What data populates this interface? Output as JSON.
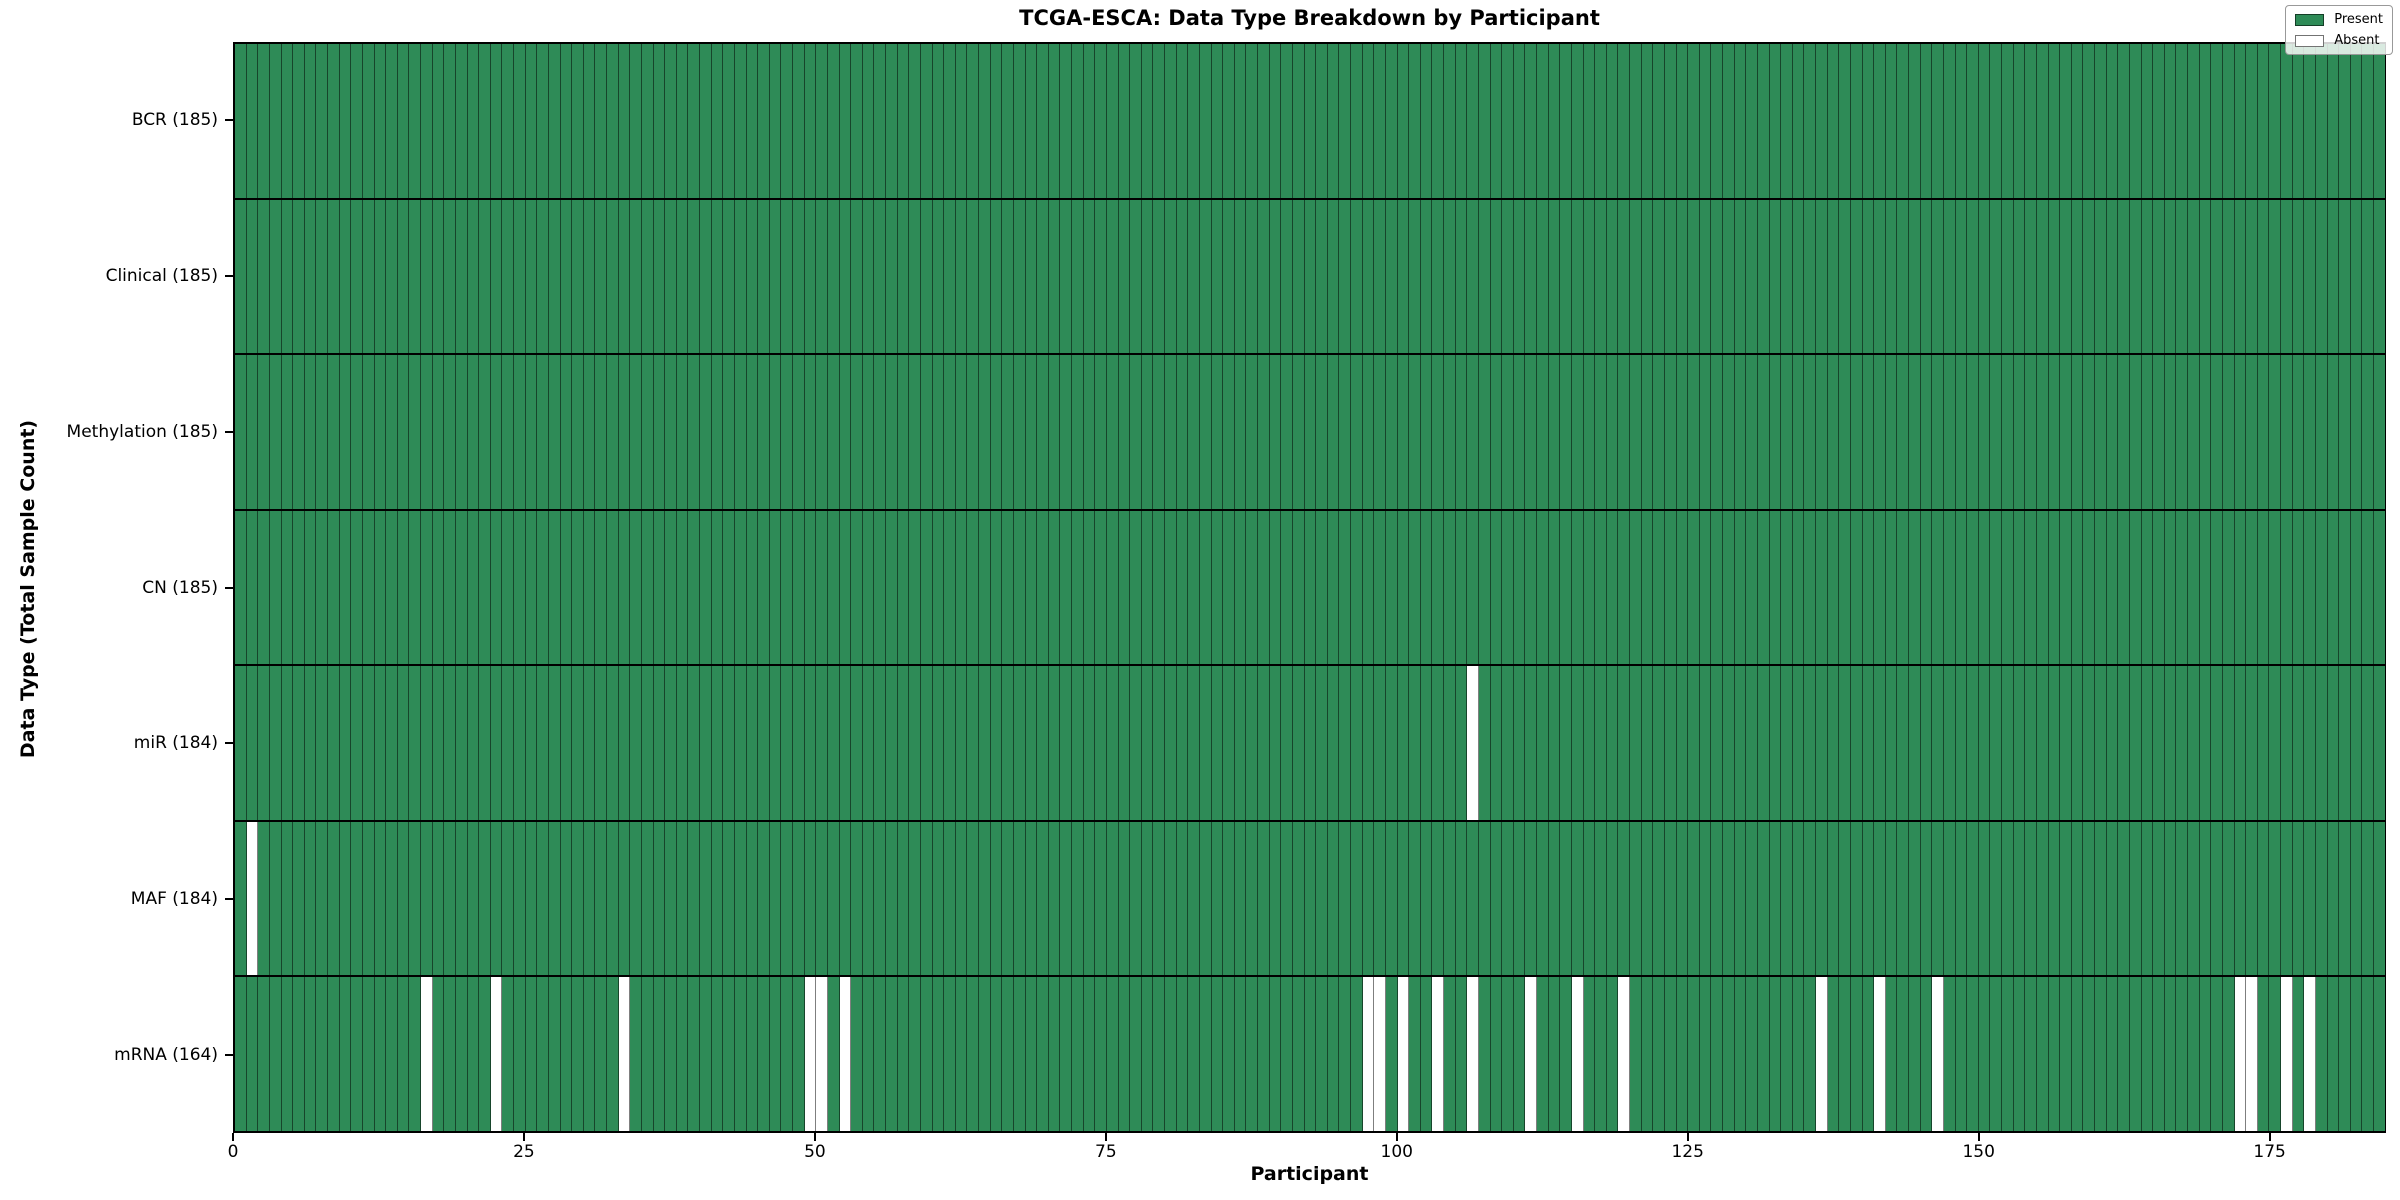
{
  "chart_data": {
    "type": "heatmap",
    "title": "TCGA-ESCA: Data Type Breakdown by Participant",
    "xlabel": "Participant",
    "ylabel": "Data Type (Total Sample Count)",
    "n_participants": 185,
    "x_ticks": [
      0,
      25,
      50,
      75,
      100,
      125,
      150,
      175
    ],
    "legend_position": "upper right",
    "grid": "cell-edges",
    "colors": {
      "present": "#2e8b57",
      "absent": "#ffffff"
    },
    "legend": [
      {
        "label": "Present",
        "value": "present"
      },
      {
        "label": "Absent",
        "value": "absent"
      }
    ],
    "rows": [
      {
        "name": "bcr",
        "label": "BCR (185)",
        "total_count": 185,
        "absent_participants": []
      },
      {
        "name": "clinical",
        "label": "Clinical (185)",
        "total_count": 185,
        "absent_participants": []
      },
      {
        "name": "methylation",
        "label": "Methylation (185)",
        "total_count": 185,
        "absent_participants": []
      },
      {
        "name": "cn",
        "label": "CN (185)",
        "total_count": 185,
        "absent_participants": []
      },
      {
        "name": "mir",
        "label": "miR (184)",
        "total_count": 184,
        "absent_participants": [
          106
        ]
      },
      {
        "name": "maf",
        "label": "MAF (184)",
        "total_count": 184,
        "absent_participants": [
          1
        ]
      },
      {
        "name": "mrna",
        "label": "mRNA (164)",
        "total_count": 164,
        "absent_participants": [
          16,
          22,
          33,
          49,
          50,
          52,
          97,
          98,
          100,
          103,
          106,
          111,
          115,
          119,
          136,
          141,
          146,
          172,
          173,
          176,
          178
        ]
      }
    ]
  }
}
